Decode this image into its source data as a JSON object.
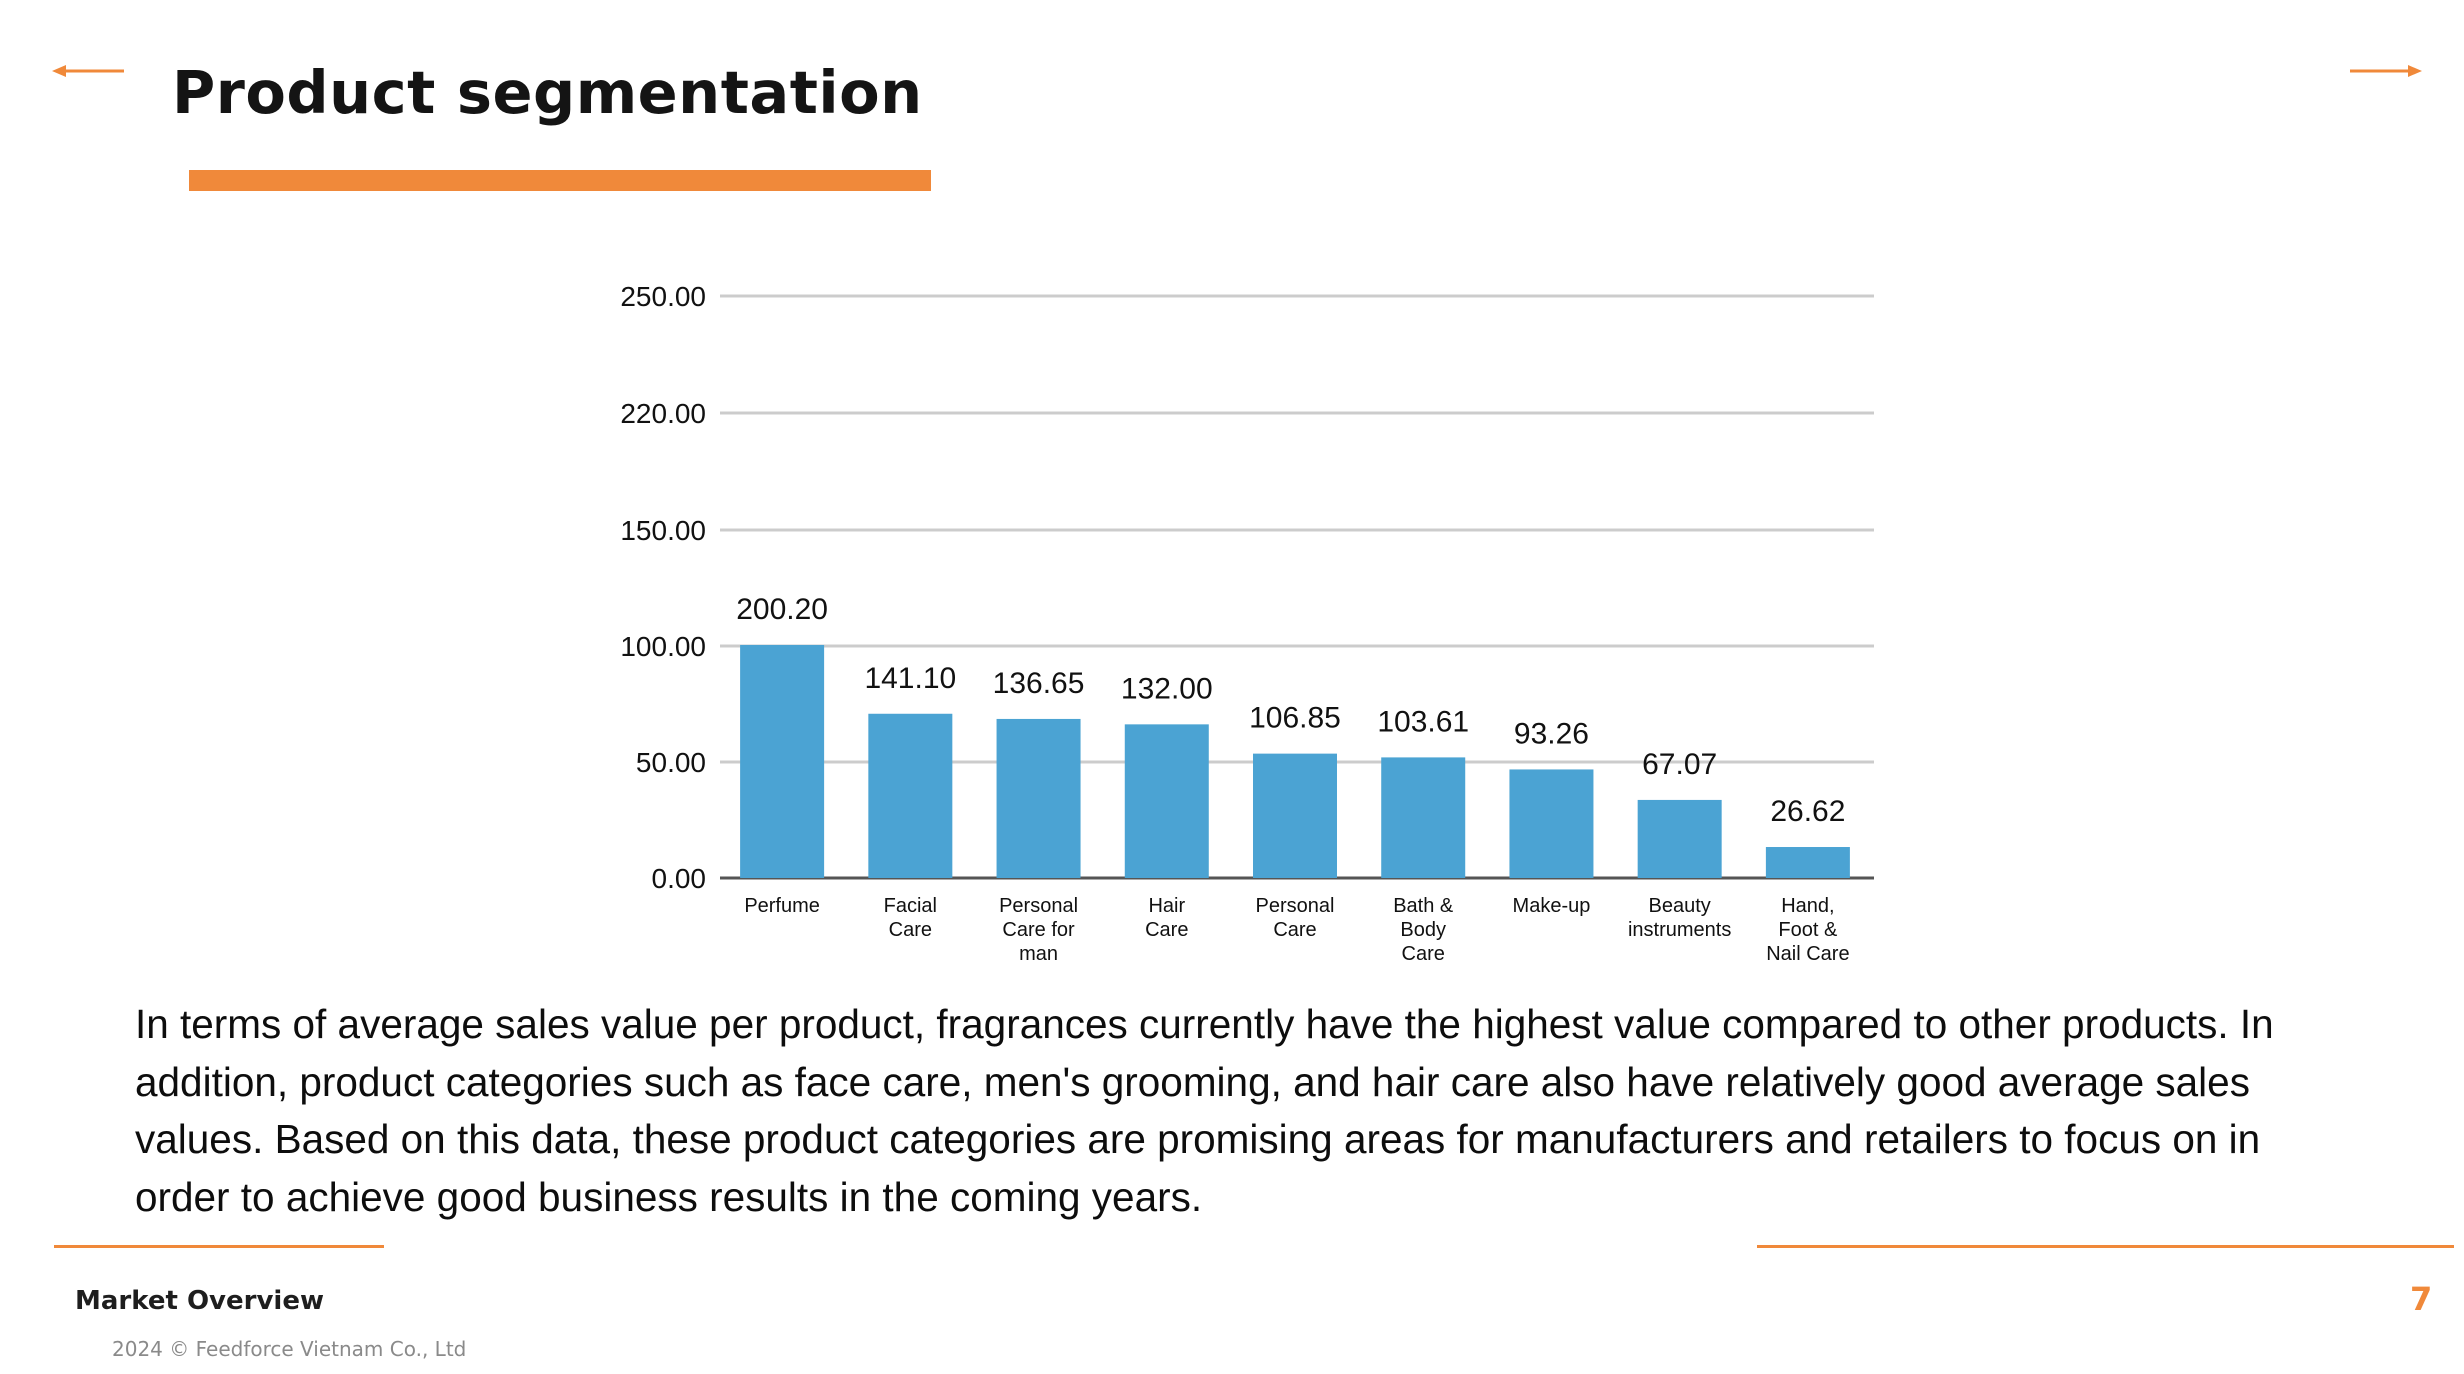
{
  "slide": {
    "title": "Product segmentation",
    "summary": "In terms of average sales value per product, fragrances currently have the highest value compared to other products. In addition, product categories such as face care, men's grooming, and hair care also have relatively good average sales values. Based on this data, these product categories are promising areas for manufacturers and retailers to focus on in order to achieve good business results in the coming years.",
    "page_number": "7"
  },
  "footer": {
    "section": "Market Overview",
    "copyright": "2024 © Feedforce Vietnam Co., Ltd"
  },
  "nav": {
    "prev_icon": "arrow-left-icon",
    "next_icon": "arrow-right-icon"
  },
  "colors": {
    "accent": "#F0893A",
    "bar": "#4BA3D3",
    "grid": "#CCCCCC",
    "axis": "#555555"
  },
  "chart_data": {
    "type": "bar",
    "title": "",
    "xlabel": "",
    "ylabel": "",
    "categories": [
      [
        "Perfume"
      ],
      [
        "Facial",
        "Care"
      ],
      [
        "Personal",
        "Care for",
        "man"
      ],
      [
        "Hair",
        "Care"
      ],
      [
        "Personal",
        "Care"
      ],
      [
        "Bath &",
        "Body",
        "Care"
      ],
      [
        "Make-up"
      ],
      [
        "Beauty",
        "instruments"
      ],
      [
        "Hand,",
        "Foot &",
        "Nail Care"
      ]
    ],
    "values": [
      200.2,
      141.1,
      136.65,
      132.0,
      106.85,
      103.61,
      93.26,
      67.07,
      26.62
    ],
    "value_labels": [
      "200.20",
      "141.10",
      "136.65",
      "132.00",
      "106.85",
      "103.61",
      "93.26",
      "67.07",
      "26.62"
    ],
    "y_ticks": [
      0,
      50,
      100,
      150,
      220,
      250
    ],
    "y_tick_labels": [
      "0.00",
      "50.00",
      "100.00",
      "150.00",
      "220.00",
      "250.00"
    ],
    "ylim": [
      0,
      250
    ],
    "grid": true,
    "legend": "none"
  }
}
